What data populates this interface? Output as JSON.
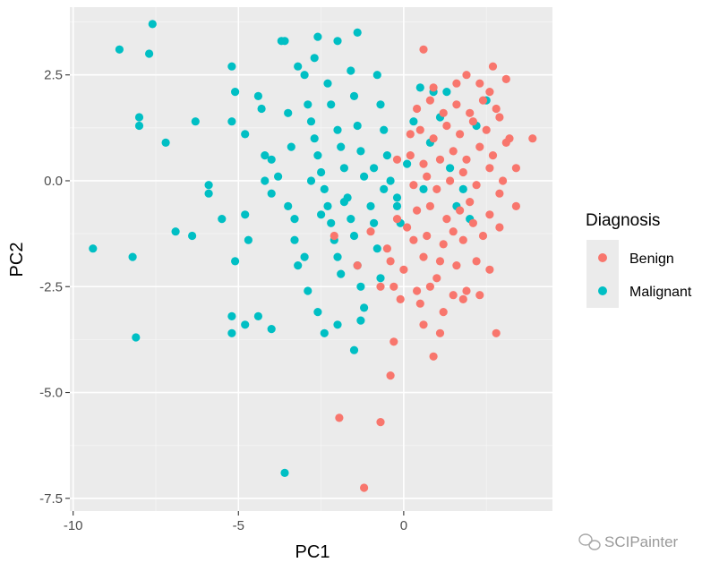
{
  "chart_data": {
    "type": "scatter",
    "xlabel": "PC1",
    "ylabel": "PC2",
    "xlim": [
      -10.1,
      4.5
    ],
    "ylim": [
      -7.8,
      4.1
    ],
    "x_ticks": [
      -10,
      -5,
      0
    ],
    "x_tick_labels": [
      "-10",
      "-5",
      "0"
    ],
    "y_ticks": [
      -7.5,
      -5,
      -2.5,
      0,
      2.5
    ],
    "y_tick_labels": [
      "-7.5",
      "-5.0",
      "-2.5",
      "0.0",
      "2.5"
    ],
    "background": "#ebebeb",
    "grid": true,
    "legend": {
      "title": "Diagnosis",
      "position": "right"
    },
    "series": [
      {
        "name": "Benign",
        "color": "#f8766d",
        "points": [
          [
            -1.2,
            -7.25
          ],
          [
            -1.95,
            -5.6
          ],
          [
            -0.7,
            -5.7
          ],
          [
            -0.4,
            -4.6
          ],
          [
            0.9,
            -4.15
          ],
          [
            1.1,
            -3.6
          ],
          [
            2.8,
            -3.6
          ],
          [
            -0.3,
            -3.8
          ],
          [
            0.6,
            -3.4
          ],
          [
            -0.1,
            -2.8
          ],
          [
            1.2,
            -3.1
          ],
          [
            0.5,
            -2.9
          ],
          [
            1.8,
            -2.8
          ],
          [
            -0.7,
            -2.5
          ],
          [
            -0.3,
            -2.5
          ],
          [
            0.4,
            -2.6
          ],
          [
            0.8,
            -2.5
          ],
          [
            1.5,
            -2.7
          ],
          [
            1.9,
            -2.6
          ],
          [
            2.3,
            -2.7
          ],
          [
            -1.4,
            -2.0
          ],
          [
            -0.4,
            -1.9
          ],
          [
            0.6,
            -1.8
          ],
          [
            1.1,
            -1.9
          ],
          [
            1.6,
            -2.0
          ],
          [
            2.2,
            -1.9
          ],
          [
            2.6,
            -2.1
          ],
          [
            -2.1,
            -1.3
          ],
          [
            -1.0,
            -1.2
          ],
          [
            0.1,
            -1.1
          ],
          [
            0.3,
            -1.4
          ],
          [
            0.7,
            -1.3
          ],
          [
            1.2,
            -1.5
          ],
          [
            1.5,
            -1.2
          ],
          [
            1.8,
            -1.4
          ],
          [
            2.1,
            -1.0
          ],
          [
            2.4,
            -1.3
          ],
          [
            2.9,
            -1.1
          ],
          [
            3.4,
            -0.6
          ],
          [
            -0.2,
            -0.9
          ],
          [
            0.4,
            -0.7
          ],
          [
            0.8,
            -0.6
          ],
          [
            1.3,
            -0.9
          ],
          [
            1.7,
            -0.7
          ],
          [
            2.0,
            -0.5
          ],
          [
            2.6,
            -0.8
          ],
          [
            2.9,
            -0.3
          ],
          [
            0.3,
            -0.1
          ],
          [
            0.7,
            0.1
          ],
          [
            1.0,
            -0.2
          ],
          [
            1.4,
            0.0
          ],
          [
            1.8,
            0.2
          ],
          [
            2.2,
            -0.1
          ],
          [
            2.6,
            0.3
          ],
          [
            3.0,
            0.0
          ],
          [
            3.4,
            0.3
          ],
          [
            -0.2,
            0.5
          ],
          [
            0.2,
            0.6
          ],
          [
            0.6,
            0.4
          ],
          [
            1.1,
            0.5
          ],
          [
            1.5,
            0.7
          ],
          [
            1.9,
            0.5
          ],
          [
            2.3,
            0.8
          ],
          [
            2.7,
            0.6
          ],
          [
            3.1,
            0.9
          ],
          [
            0.2,
            1.1
          ],
          [
            0.5,
            1.2
          ],
          [
            0.9,
            1.0
          ],
          [
            1.3,
            1.3
          ],
          [
            1.7,
            1.1
          ],
          [
            2.1,
            1.4
          ],
          [
            2.5,
            1.2
          ],
          [
            2.9,
            1.5
          ],
          [
            3.2,
            1.0
          ],
          [
            3.9,
            1.0
          ],
          [
            0.4,
            1.7
          ],
          [
            0.8,
            1.9
          ],
          [
            1.2,
            1.6
          ],
          [
            1.6,
            1.8
          ],
          [
            2.0,
            1.6
          ],
          [
            2.4,
            1.9
          ],
          [
            2.8,
            1.7
          ],
          [
            0.9,
            2.2
          ],
          [
            1.6,
            2.3
          ],
          [
            2.3,
            2.3
          ],
          [
            2.6,
            2.1
          ],
          [
            0.6,
            3.1
          ],
          [
            2.7,
            2.7
          ],
          [
            3.1,
            2.4
          ],
          [
            1.9,
            2.5
          ],
          [
            -0.5,
            -1.6
          ],
          [
            0.0,
            -2.1
          ],
          [
            1.0,
            -2.3
          ]
        ]
      },
      {
        "name": "Malignant",
        "color": "#00bfc4",
        "points": [
          [
            -7.6,
            3.7
          ],
          [
            -8.6,
            3.1
          ],
          [
            -7.7,
            3.0
          ],
          [
            -8.0,
            1.5
          ],
          [
            -8.0,
            1.3
          ],
          [
            -7.2,
            0.9
          ],
          [
            -6.3,
            1.4
          ],
          [
            -9.4,
            -1.6
          ],
          [
            -8.2,
            -1.8
          ],
          [
            -8.1,
            -3.7
          ],
          [
            -6.4,
            -1.3
          ],
          [
            -6.9,
            -1.2
          ],
          [
            -5.9,
            -0.1
          ],
          [
            -5.9,
            -0.3
          ],
          [
            -5.5,
            -0.9
          ],
          [
            -5.2,
            2.7
          ],
          [
            -5.1,
            2.1
          ],
          [
            -5.2,
            1.4
          ],
          [
            -4.8,
            1.1
          ],
          [
            -4.8,
            -0.8
          ],
          [
            -4.7,
            -1.4
          ],
          [
            -5.1,
            -1.9
          ],
          [
            -5.2,
            -3.2
          ],
          [
            -5.2,
            -3.6
          ],
          [
            -4.8,
            -3.4
          ],
          [
            -4.4,
            -3.2
          ],
          [
            -4.0,
            -3.5
          ],
          [
            -4.4,
            2.0
          ],
          [
            -4.3,
            1.7
          ],
          [
            -4.2,
            0.6
          ],
          [
            -4.0,
            0.5
          ],
          [
            -4.2,
            0.0
          ],
          [
            -4.0,
            -0.3
          ],
          [
            -3.7,
            3.3
          ],
          [
            -3.6,
            3.3
          ],
          [
            -3.5,
            1.6
          ],
          [
            -3.4,
            0.8
          ],
          [
            -3.3,
            -0.9
          ],
          [
            -3.3,
            -1.4
          ],
          [
            -3.2,
            -2.0
          ],
          [
            -3.6,
            -6.9
          ],
          [
            -3.2,
            2.7
          ],
          [
            -3.0,
            2.5
          ],
          [
            -2.9,
            1.8
          ],
          [
            -2.8,
            1.4
          ],
          [
            -2.7,
            1.0
          ],
          [
            -2.6,
            0.6
          ],
          [
            -2.5,
            0.2
          ],
          [
            -2.4,
            -0.2
          ],
          [
            -2.3,
            -0.6
          ],
          [
            -2.2,
            -1.0
          ],
          [
            -2.1,
            -1.4
          ],
          [
            -2.0,
            -1.8
          ],
          [
            -1.9,
            -2.2
          ],
          [
            -2.6,
            3.4
          ],
          [
            -2.0,
            3.3
          ],
          [
            -2.7,
            2.9
          ],
          [
            -2.3,
            2.3
          ],
          [
            -2.2,
            1.8
          ],
          [
            -2.0,
            1.2
          ],
          [
            -1.9,
            0.8
          ],
          [
            -1.8,
            0.3
          ],
          [
            -1.7,
            -0.4
          ],
          [
            -1.6,
            -0.9
          ],
          [
            -1.5,
            -1.3
          ],
          [
            -1.4,
            -2.0
          ],
          [
            -1.3,
            -2.5
          ],
          [
            -1.2,
            -3.0
          ],
          [
            -1.4,
            3.5
          ],
          [
            -1.6,
            2.6
          ],
          [
            -1.5,
            2.0
          ],
          [
            -1.4,
            1.3
          ],
          [
            -1.3,
            0.7
          ],
          [
            -1.2,
            0.1
          ],
          [
            -1.0,
            -0.6
          ],
          [
            -0.9,
            -1.0
          ],
          [
            -0.8,
            -1.6
          ],
          [
            -0.7,
            -2.3
          ],
          [
            -1.3,
            -3.3
          ],
          [
            -1.5,
            -4.0
          ],
          [
            -0.8,
            2.5
          ],
          [
            -0.7,
            1.8
          ],
          [
            -0.6,
            1.2
          ],
          [
            -0.5,
            0.6
          ],
          [
            -0.4,
            0.0
          ],
          [
            -0.2,
            -0.4
          ],
          [
            -0.1,
            -1.0
          ],
          [
            -3.0,
            -1.8
          ],
          [
            -2.9,
            -2.6
          ],
          [
            -2.6,
            -3.1
          ],
          [
            -2.4,
            -3.6
          ],
          [
            -2.0,
            -3.4
          ],
          [
            -3.5,
            -0.6
          ],
          [
            -3.8,
            0.1
          ],
          [
            -2.8,
            0.0
          ],
          [
            -2.5,
            -0.8
          ],
          [
            -1.8,
            -0.5
          ],
          [
            0.3,
            1.4
          ],
          [
            0.5,
            2.2
          ],
          [
            0.9,
            2.1
          ],
          [
            1.3,
            2.1
          ],
          [
            1.1,
            1.5
          ],
          [
            0.8,
            0.9
          ],
          [
            1.4,
            0.3
          ],
          [
            1.8,
            -0.2
          ],
          [
            1.6,
            -0.6
          ],
          [
            2.0,
            -0.9
          ],
          [
            0.6,
            -0.2
          ],
          [
            2.2,
            1.3
          ],
          [
            2.5,
            1.9
          ],
          [
            -0.2,
            -0.6
          ],
          [
            -0.9,
            0.3
          ],
          [
            -0.6,
            -0.2
          ],
          [
            0.1,
            0.4
          ]
        ]
      }
    ]
  },
  "watermark": {
    "text": "SCIPainter",
    "icon": "wechat-icon"
  }
}
